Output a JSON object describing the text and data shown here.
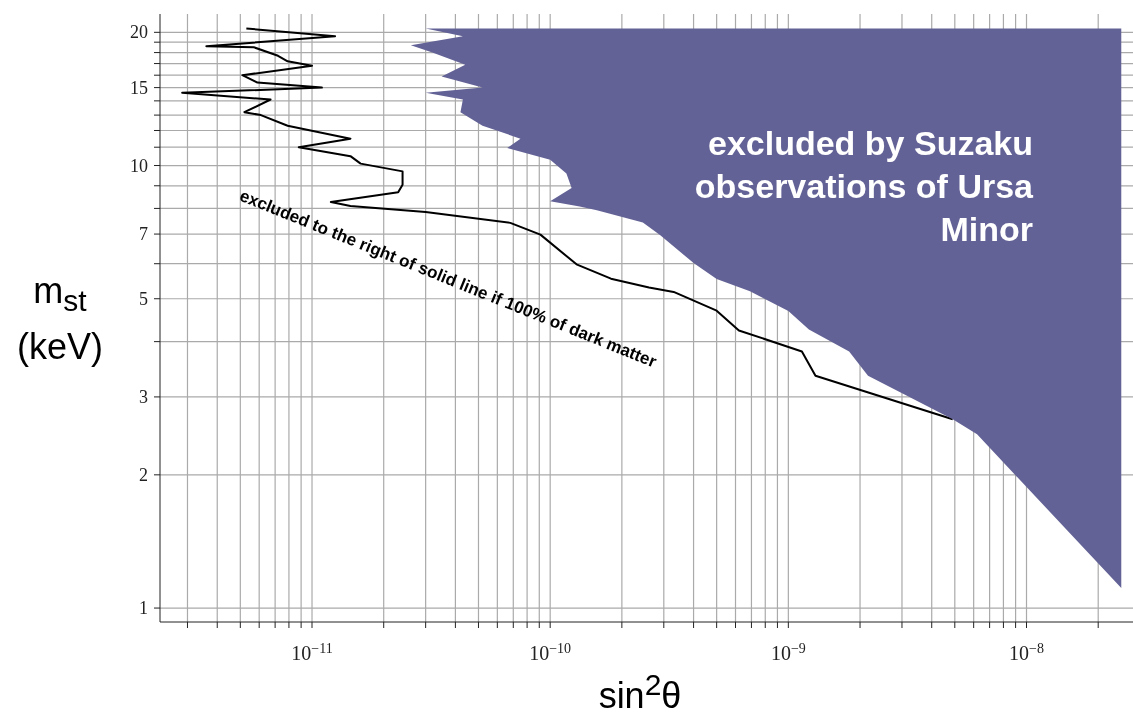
{
  "chart_data": {
    "type": "line",
    "xlabel": "sin$^{2}$θ",
    "ylabel": "m$_{st}$ (keV)",
    "log": "xy",
    "grid": true,
    "marker": "none",
    "line_style": "solid",
    "xlim": [
      2.3e-12,
      2.8e-08
    ],
    "ylim": [
      0.93,
      22
    ],
    "xticks": [
      {
        "value": 3e-12,
        "label": null
      },
      {
        "value": 4e-12,
        "label": null
      },
      {
        "value": 5e-12,
        "label": null
      },
      {
        "value": 6e-12,
        "label": null
      },
      {
        "value": 7e-12,
        "label": null
      },
      {
        "value": 8e-12,
        "label": null
      },
      {
        "value": 9e-12,
        "label": null
      },
      {
        "value": 1e-11,
        "label": "10$^{−11}$"
      },
      {
        "value": 2e-11,
        "label": null
      },
      {
        "value": 3e-11,
        "label": null
      },
      {
        "value": 4e-11,
        "label": null
      },
      {
        "value": 5e-11,
        "label": null
      },
      {
        "value": 6e-11,
        "label": null
      },
      {
        "value": 7e-11,
        "label": null
      },
      {
        "value": 8e-11,
        "label": null
      },
      {
        "value": 9e-11,
        "label": null
      },
      {
        "value": 1e-10,
        "label": "10$^{−10}$"
      },
      {
        "value": 2e-10,
        "label": null
      },
      {
        "value": 3e-10,
        "label": null
      },
      {
        "value": 4e-10,
        "label": null
      },
      {
        "value": 5e-10,
        "label": null
      },
      {
        "value": 6e-10,
        "label": null
      },
      {
        "value": 7e-10,
        "label": null
      },
      {
        "value": 8e-10,
        "label": null
      },
      {
        "value": 9e-10,
        "label": null
      },
      {
        "value": 1e-09,
        "label": "10$^{−9}$"
      },
      {
        "value": 2e-09,
        "label": null
      },
      {
        "value": 3e-09,
        "label": null
      },
      {
        "value": 4e-09,
        "label": null
      },
      {
        "value": 5e-09,
        "label": null
      },
      {
        "value": 6e-09,
        "label": null
      },
      {
        "value": 7e-09,
        "label": null
      },
      {
        "value": 8e-09,
        "label": null
      },
      {
        "value": 9e-09,
        "label": null
      },
      {
        "value": 1e-08,
        "label": "10$^{−8}$"
      },
      {
        "value": 2e-08,
        "label": null
      }
    ],
    "yticks": [
      1,
      2,
      3,
      {
        "value": 4,
        "label": null
      },
      5,
      {
        "value": 6,
        "label": null
      },
      7,
      {
        "value": 8,
        "label": null
      },
      {
        "value": 9,
        "label": null
      },
      10,
      {
        "value": 11,
        "label": null
      },
      {
        "value": 12,
        "label": null
      },
      {
        "value": 13,
        "label": null
      },
      {
        "value": 14,
        "label": null
      },
      15,
      {
        "value": 16,
        "label": null
      },
      {
        "value": 17,
        "label": null
      },
      {
        "value": 18,
        "label": null
      },
      {
        "value": 19,
        "label": null
      },
      20
    ],
    "annotations": [
      "excluded by Suzaku observations of Ursa Minor",
      "excluded to the right of solid line if 100% of dark matter"
    ],
    "series": [
      {
        "type": "area",
        "color": "#636296",
        "x": [
          3e-11,
          4.3e-11,
          2.6e-11,
          3.2e-11,
          4.4e-11,
          3.5e-11,
          5.2e-11,
          3e-11,
          4.3e-11,
          4.2e-11,
          5.2e-11,
          7.5e-11,
          6.6e-11,
          1e-10,
          1.17e-10,
          1.23e-10,
          1e-10,
          1.33e-10,
          1.57e-10,
          2.45e-10,
          2.9e-10,
          4e-10,
          5e-10,
          6.9e-10,
          1e-09,
          1.22e-09,
          1.8e-09,
          2.16e-09,
          4.9e-09,
          6.2e-09,
          2.5e-08,
          2.5e-08
        ],
        "values": [
          20.4,
          19.6,
          18.7,
          18.0,
          16.9,
          15.9,
          15.0,
          14.6,
          14.1,
          13.2,
          12.3,
          11.5,
          10.95,
          10.3,
          9.6,
          8.9,
          8.3,
          8.08,
          7.92,
          7.43,
          6.96,
          6.02,
          5.54,
          5.2,
          4.69,
          4.26,
          3.8,
          3.35,
          2.67,
          2.47,
          1.11,
          20.4
        ]
      },
      {
        "color": "#000000",
        "x": [
          5.3e-12,
          1.25e-11,
          3.6e-12,
          5.7e-12,
          7.2e-12,
          7.9e-12,
          1e-11,
          5.1e-12,
          5.9e-12,
          1.1e-11,
          2.85e-12,
          6.7e-12,
          5.2e-12,
          6.1e-12,
          7.9e-12,
          1.45e-11,
          8.8e-12,
          1.45e-11,
          1.6e-11,
          2.4e-11,
          2.4e-11,
          2.3e-11,
          1.2e-11,
          1.45e-11,
          3e-11,
          6.8e-11,
          9.1e-11,
          1.29e-10,
          1.8e-10,
          2.6e-10,
          3.3e-10,
          5e-10,
          6.2e-10,
          1.14e-09,
          1.3e-09,
          4.9e-09
        ],
        "values": [
          20.4,
          19.6,
          18.6,
          18.5,
          17.7,
          17.2,
          16.8,
          16.0,
          15.4,
          15.0,
          14.6,
          14.1,
          13.2,
          13.0,
          12.3,
          11.5,
          11.0,
          10.5,
          10.1,
          9.7,
          9.05,
          8.7,
          8.27,
          8.1,
          7.85,
          7.42,
          6.98,
          5.98,
          5.55,
          5.3,
          5.18,
          4.7,
          4.24,
          3.8,
          3.35,
          2.67
        ]
      }
    ]
  }
}
